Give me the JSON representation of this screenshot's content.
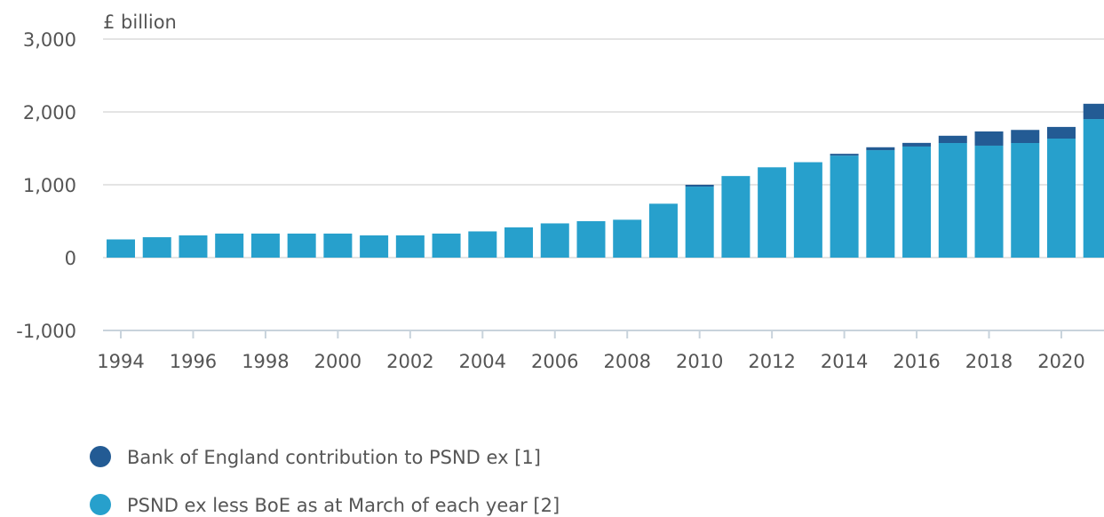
{
  "chart_data": {
    "type": "stacked-bar",
    "y_label": "£ billion",
    "categories": [
      "1994",
      null,
      "1996",
      null,
      "1998",
      null,
      "2000",
      null,
      "2002",
      null,
      "2004",
      null,
      "2006",
      null,
      "2008",
      null,
      "2010",
      null,
      "2012",
      null,
      "2014",
      null,
      "2016",
      null,
      "2018",
      null,
      "2020",
      null
    ],
    "series": [
      {
        "name": "Bank of England contribution to PSND ex [1]",
        "color": "#235b94",
        "values": [
          0,
          0,
          0,
          0,
          0,
          0,
          0,
          0,
          0,
          0,
          0,
          0,
          0,
          0,
          0,
          0,
          25,
          0,
          0,
          0,
          25,
          40,
          50,
          100,
          195,
          180,
          160,
          210
        ]
      },
      {
        "name": "PSND ex less BoE as at March of each year [2]",
        "color": "#27a0cc",
        "values": [
          250,
          280,
          305,
          330,
          330,
          330,
          330,
          305,
          305,
          330,
          360,
          415,
          470,
          500,
          520,
          740,
          975,
          1120,
          1240,
          1310,
          1400,
          1475,
          1525,
          1573,
          1537,
          1573,
          1634,
          1902
        ]
      }
    ],
    "ylim": [
      -1000,
      3000
    ],
    "yticks": [
      {
        "value": -1000,
        "label": "-1,000"
      },
      0,
      {
        "value": 1000,
        "label": "1,000"
      },
      {
        "value": 2000,
        "label": "2,000"
      },
      {
        "value": 3000,
        "label": "3,000"
      }
    ],
    "grid": true
  }
}
